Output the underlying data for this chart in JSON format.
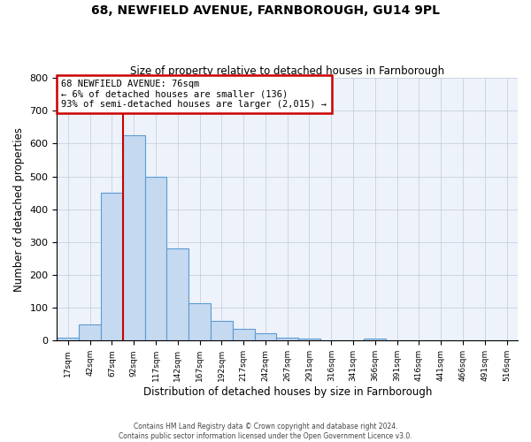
{
  "title": "68, NEWFIELD AVENUE, FARNBOROUGH, GU14 9PL",
  "subtitle": "Size of property relative to detached houses in Farnborough",
  "xlabel": "Distribution of detached houses by size in Farnborough",
  "ylabel": "Number of detached properties",
  "bar_values": [
    10,
    50,
    450,
    625,
    500,
    280,
    115,
    60,
    35,
    22,
    8,
    7,
    0,
    0,
    7,
    0,
    0,
    0,
    0,
    0,
    0
  ],
  "bin_labels": [
    "17sqm",
    "42sqm",
    "67sqm",
    "92sqm",
    "117sqm",
    "142sqm",
    "167sqm",
    "192sqm",
    "217sqm",
    "242sqm",
    "267sqm",
    "291sqm",
    "316sqm",
    "341sqm",
    "366sqm",
    "391sqm",
    "416sqm",
    "441sqm",
    "466sqm",
    "491sqm",
    "516sqm"
  ],
  "bar_color": "#c5d9f0",
  "bar_edge_color": "#5b9bd5",
  "vline_color": "#cc0000",
  "vline_pos": 2.5,
  "annotation_text": "68 NEWFIELD AVENUE: 76sqm\n← 6% of detached houses are smaller (136)\n93% of semi-detached houses are larger (2,015) →",
  "annotation_box_edge": "#cc0000",
  "ylim": [
    0,
    800
  ],
  "yticks": [
    0,
    100,
    200,
    300,
    400,
    500,
    600,
    700,
    800
  ],
  "grid_color": "#c8d0e0",
  "bg_color": "#eef2fa",
  "footer_line1": "Contains HM Land Registry data © Crown copyright and database right 2024.",
  "footer_line2": "Contains public sector information licensed under the Open Government Licence v3.0."
}
